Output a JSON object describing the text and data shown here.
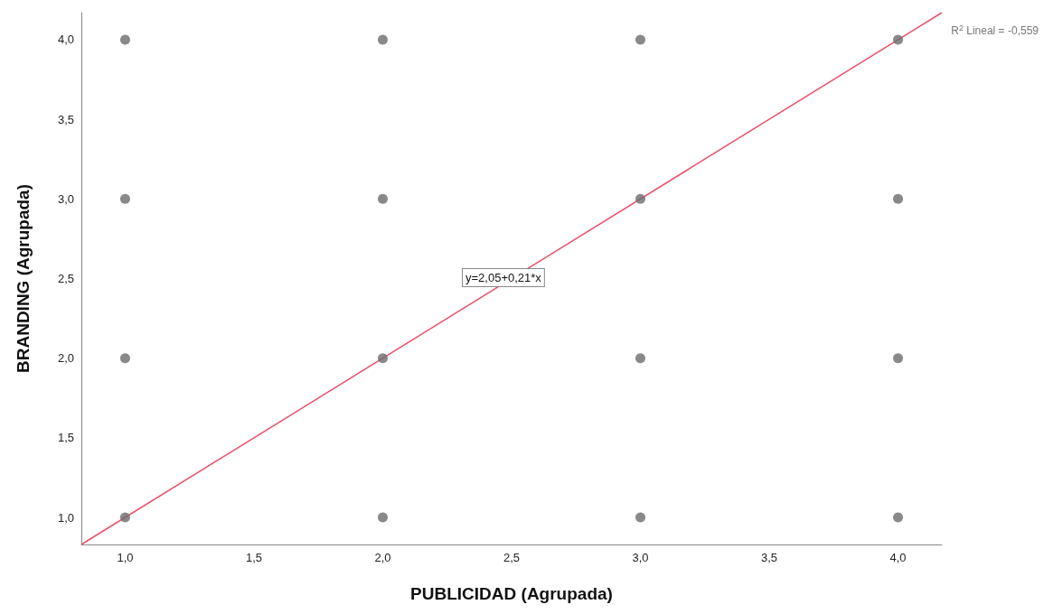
{
  "chart_data": {
    "type": "scatter",
    "xlabel": "PUBLICIDAD (Agrupada)",
    "ylabel": "BRANDING (Agrupada)",
    "xlim": [
      0.83,
      4.17
    ],
    "ylim": [
      0.83,
      4.17
    ],
    "xticks": [
      {
        "value": 1,
        "label": "1,0"
      },
      {
        "value": 1.5,
        "label": "1,5"
      },
      {
        "value": 2,
        "label": "2,0"
      },
      {
        "value": 2.5,
        "label": "2,5"
      },
      {
        "value": 3,
        "label": "3,0"
      },
      {
        "value": 3.5,
        "label": "3,5"
      },
      {
        "value": 4,
        "label": "4,0"
      }
    ],
    "yticks": [
      {
        "value": 1,
        "label": "1,0"
      },
      {
        "value": 1.5,
        "label": "1,5"
      },
      {
        "value": 2,
        "label": "2,0"
      },
      {
        "value": 2.5,
        "label": "2,5"
      },
      {
        "value": 3,
        "label": "3,0"
      },
      {
        "value": 3.5,
        "label": "3,5"
      },
      {
        "value": 4,
        "label": "4,0"
      }
    ],
    "grid": false,
    "marker": "circle",
    "series": [
      {
        "color": "#6b6b6b",
        "x": [
          1,
          1,
          1,
          1,
          2,
          2,
          2,
          2,
          3,
          3,
          3,
          3,
          4,
          4,
          4,
          4
        ],
        "values": [
          4,
          3,
          2,
          1,
          4,
          3,
          2,
          1,
          4,
          3,
          2,
          1,
          4,
          3,
          2,
          1
        ]
      },
      {
        "type": "line",
        "color": "#e8516b",
        "marker": "none",
        "x": [
          0.83,
          4.17
        ],
        "values": [
          0.83,
          4.17
        ]
      }
    ],
    "annotations": [
      "y=2,05+0,21*x",
      "R$^{2}$ Lineal = -0,559"
    ]
  }
}
